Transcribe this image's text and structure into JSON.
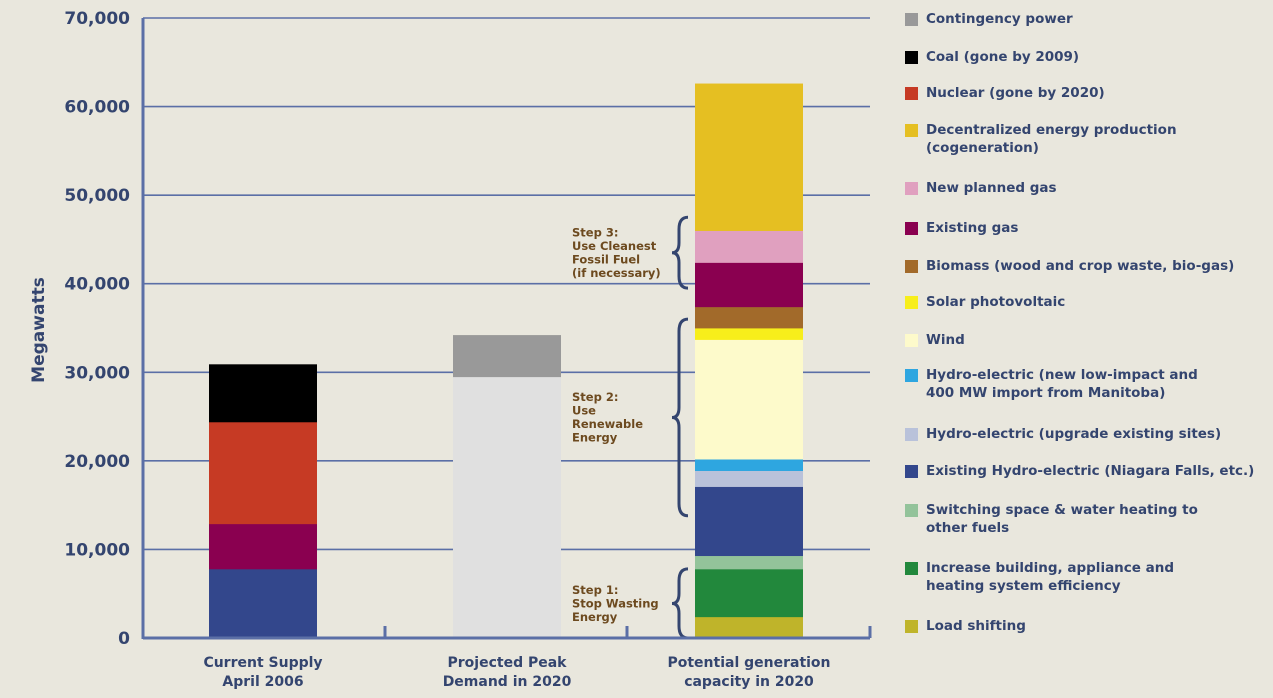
{
  "chart_data": {
    "type": "stacked-bar",
    "ylabel": "Megawatts",
    "ylim": [
      0,
      70000
    ],
    "yticks": [
      "0",
      "10,000",
      "20,000",
      "30,000",
      "40,000",
      "50,000",
      "60,000",
      "70,000"
    ],
    "grid": true,
    "bars": [
      {
        "label": "Current Supply\nApril 2006",
        "segments": [
          {
            "name": "Existing Hydro-electric",
            "value": 7800,
            "color": "#33478c"
          },
          {
            "name": "Existing gas",
            "value": 5100,
            "color": "#8a0050"
          },
          {
            "name": "Nuclear",
            "value": 11500,
            "color": "#c63a24"
          },
          {
            "name": "Coal",
            "value": 6500,
            "color": "#000000"
          }
        ]
      },
      {
        "label": "Projected Peak\nDemand in 2020",
        "segments": [
          {
            "name": "Projected peak demand",
            "value": 29500,
            "color": "#e0e0e0"
          },
          {
            "name": "Contingency power",
            "value": 4700,
            "color": "#999999"
          }
        ]
      },
      {
        "label": "Potential generation\ncapacity in 2020",
        "segments": [
          {
            "name": "Load shifting",
            "value": 2400,
            "color": "#bfb42a"
          },
          {
            "name": "Increase building, appliance and heating system efficiency",
            "value": 5400,
            "color": "#22883c"
          },
          {
            "name": "Switching space & water heating to other fuels",
            "value": 1500,
            "color": "#93c39a"
          },
          {
            "name": "Existing Hydro-electric",
            "value": 7800,
            "color": "#33478c"
          },
          {
            "name": "Hydro-electric (upgrade existing sites)",
            "value": 1800,
            "color": "#b9c2da"
          },
          {
            "name": "Hydro-electric (new low-impact and 400 MW import from Manitoba)",
            "value": 1300,
            "color": "#2ea6e0"
          },
          {
            "name": "Wind",
            "value": 13500,
            "color": "#fdfacb"
          },
          {
            "name": "Solar photovoltaic",
            "value": 1300,
            "color": "#f7ee1b"
          },
          {
            "name": "Biomass",
            "value": 2400,
            "color": "#a26a2a"
          },
          {
            "name": "Existing gas",
            "value": 5000,
            "color": "#8a0050"
          },
          {
            "name": "New planned gas",
            "value": 3600,
            "color": "#e0a0bf"
          },
          {
            "name": "Decentralized energy production (cogeneration)",
            "value": 16600,
            "color": "#e5bf22"
          }
        ]
      }
    ],
    "steps": [
      {
        "label": "Step 1:\nStop Wasting\nEnergy",
        "from": 0,
        "to": 7800
      },
      {
        "label": "Step 2:\nUse\nRenewable\nEnergy",
        "from": 13800,
        "to": 36000
      },
      {
        "label": "Step 3:\nUse Cleanest\nFossil Fuel\n(if necessary)",
        "from": 39500,
        "to": 47500
      }
    ],
    "legend": [
      {
        "label": "Contingency power",
        "color": "#999999"
      },
      {
        "label": "Coal (gone by 2009)",
        "color": "#000000"
      },
      {
        "label": "Nuclear (gone by 2020)",
        "color": "#c63a24"
      },
      {
        "label": "Decentralized energy production\n(cogeneration)",
        "color": "#e5bf22"
      },
      {
        "label": "New planned gas",
        "color": "#e0a0bf"
      },
      {
        "label": "Existing gas",
        "color": "#8a0050"
      },
      {
        "label": "Biomass (wood and crop waste, bio-gas)",
        "color": "#a26a2a"
      },
      {
        "label": "Solar photovoltaic",
        "color": "#f7ee1b"
      },
      {
        "label": "Wind",
        "color": "#fdfacb"
      },
      {
        "label": "Hydro-electric (new low-impact and\n400 MW import from Manitoba)",
        "color": "#2ea6e0"
      },
      {
        "label": "Hydro-electric (upgrade existing sites)",
        "color": "#b9c2da"
      },
      {
        "label": "Existing Hydro-electric (Niagara Falls, etc.)",
        "color": "#33478c"
      },
      {
        "label": "Switching space & water heating to\nother fuels",
        "color": "#93c39a"
      },
      {
        "label": "Increase building, appliance and\nheating system efficiency",
        "color": "#22883c"
      },
      {
        "label": "Load shifting",
        "color": "#bfb42a"
      }
    ],
    "axis_color": "#5b6fa6",
    "text_color": "#34456f",
    "step_color": "#6d4a1f"
  }
}
